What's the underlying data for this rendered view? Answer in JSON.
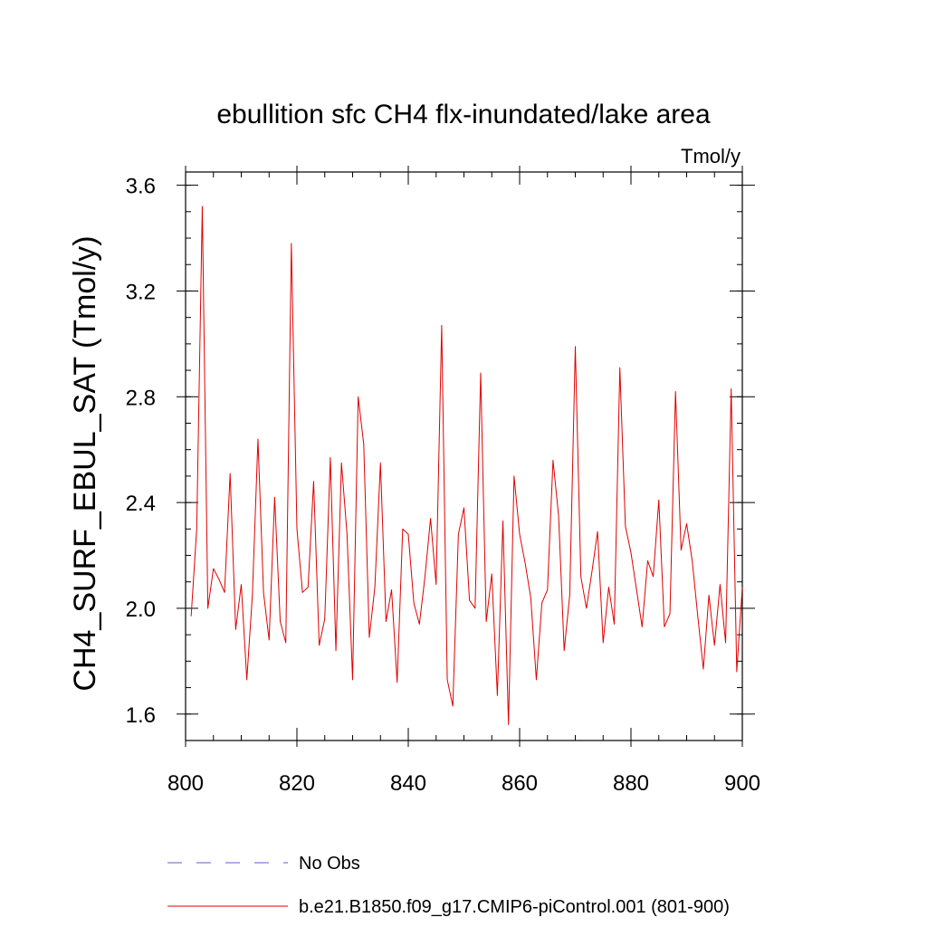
{
  "chart_data": {
    "type": "line",
    "title": "ebullition sfc CH4 flx-inundated/lake area",
    "units_label": "Tmol/y",
    "ylabel": "CH4_SURF_EBUL_SAT  (Tmol/y)",
    "xlabel": "",
    "xlim": [
      800,
      900
    ],
    "ylim": [
      1.5,
      3.65
    ],
    "x_ticks": [
      800,
      820,
      840,
      860,
      880,
      900
    ],
    "x_tick_labels": [
      "800",
      "820",
      "840",
      "860",
      "880",
      "900"
    ],
    "y_ticks": [
      1.6,
      2.0,
      2.4,
      2.8,
      3.2,
      3.6
    ],
    "y_tick_labels": [
      "1.6",
      "2.0",
      "2.4",
      "2.8",
      "3.2",
      "3.6"
    ],
    "legend": [
      {
        "label": "No Obs",
        "color": "#6a5acd",
        "style": "dashed"
      },
      {
        "label": "b.e21.B1850.f09_g17.CMIP6-piControl.001 (801-900)",
        "color": "#e00000",
        "style": "solid"
      }
    ],
    "series": [
      {
        "name": "b.e21.B1850.f09_g17.CMIP6-piControl.001 (801-900)",
        "color": "#e00000",
        "x": [
          801,
          802,
          803,
          804,
          805,
          806,
          807,
          808,
          809,
          810,
          811,
          812,
          813,
          814,
          815,
          816,
          817,
          818,
          819,
          820,
          821,
          822,
          823,
          824,
          825,
          826,
          827,
          828,
          829,
          830,
          831,
          832,
          833,
          834,
          835,
          836,
          837,
          838,
          839,
          840,
          841,
          842,
          843,
          844,
          845,
          846,
          847,
          848,
          849,
          850,
          851,
          852,
          853,
          854,
          855,
          856,
          857,
          858,
          859,
          860,
          861,
          862,
          863,
          864,
          865,
          866,
          867,
          868,
          869,
          870,
          871,
          872,
          873,
          874,
          875,
          876,
          877,
          878,
          879,
          880,
          881,
          882,
          883,
          884,
          885,
          886,
          887,
          888,
          889,
          890,
          891,
          892,
          893,
          894,
          895,
          896,
          897,
          898,
          899,
          900
        ],
        "y": [
          1.97,
          2.3,
          3.52,
          2.0,
          2.15,
          2.11,
          2.06,
          2.51,
          1.92,
          2.09,
          1.73,
          2.05,
          2.64,
          2.06,
          1.88,
          2.42,
          1.95,
          1.87,
          3.38,
          2.3,
          2.06,
          2.08,
          2.48,
          1.86,
          1.96,
          2.57,
          1.84,
          2.55,
          2.28,
          1.73,
          2.8,
          2.62,
          1.89,
          2.08,
          2.55,
          1.95,
          2.07,
          1.72,
          2.3,
          2.28,
          2.02,
          1.94,
          2.12,
          2.34,
          2.09,
          3.07,
          1.73,
          1.63,
          2.28,
          2.38,
          2.03,
          2.0,
          2.89,
          1.95,
          2.13,
          1.67,
          2.33,
          1.56,
          2.5,
          2.28,
          2.17,
          2.04,
          1.73,
          2.02,
          2.07,
          2.56,
          2.35,
          1.84,
          2.05,
          2.99,
          2.12,
          2.0,
          2.14,
          2.29,
          1.87,
          2.08,
          1.94,
          2.91,
          2.31,
          2.21,
          2.07,
          1.93,
          2.18,
          2.12,
          2.41,
          1.93,
          1.98,
          2.82,
          2.22,
          2.32,
          2.18,
          1.97,
          1.77,
          2.05,
          1.86,
          2.09,
          1.87,
          2.83,
          1.76,
          2.08
        ]
      }
    ]
  }
}
